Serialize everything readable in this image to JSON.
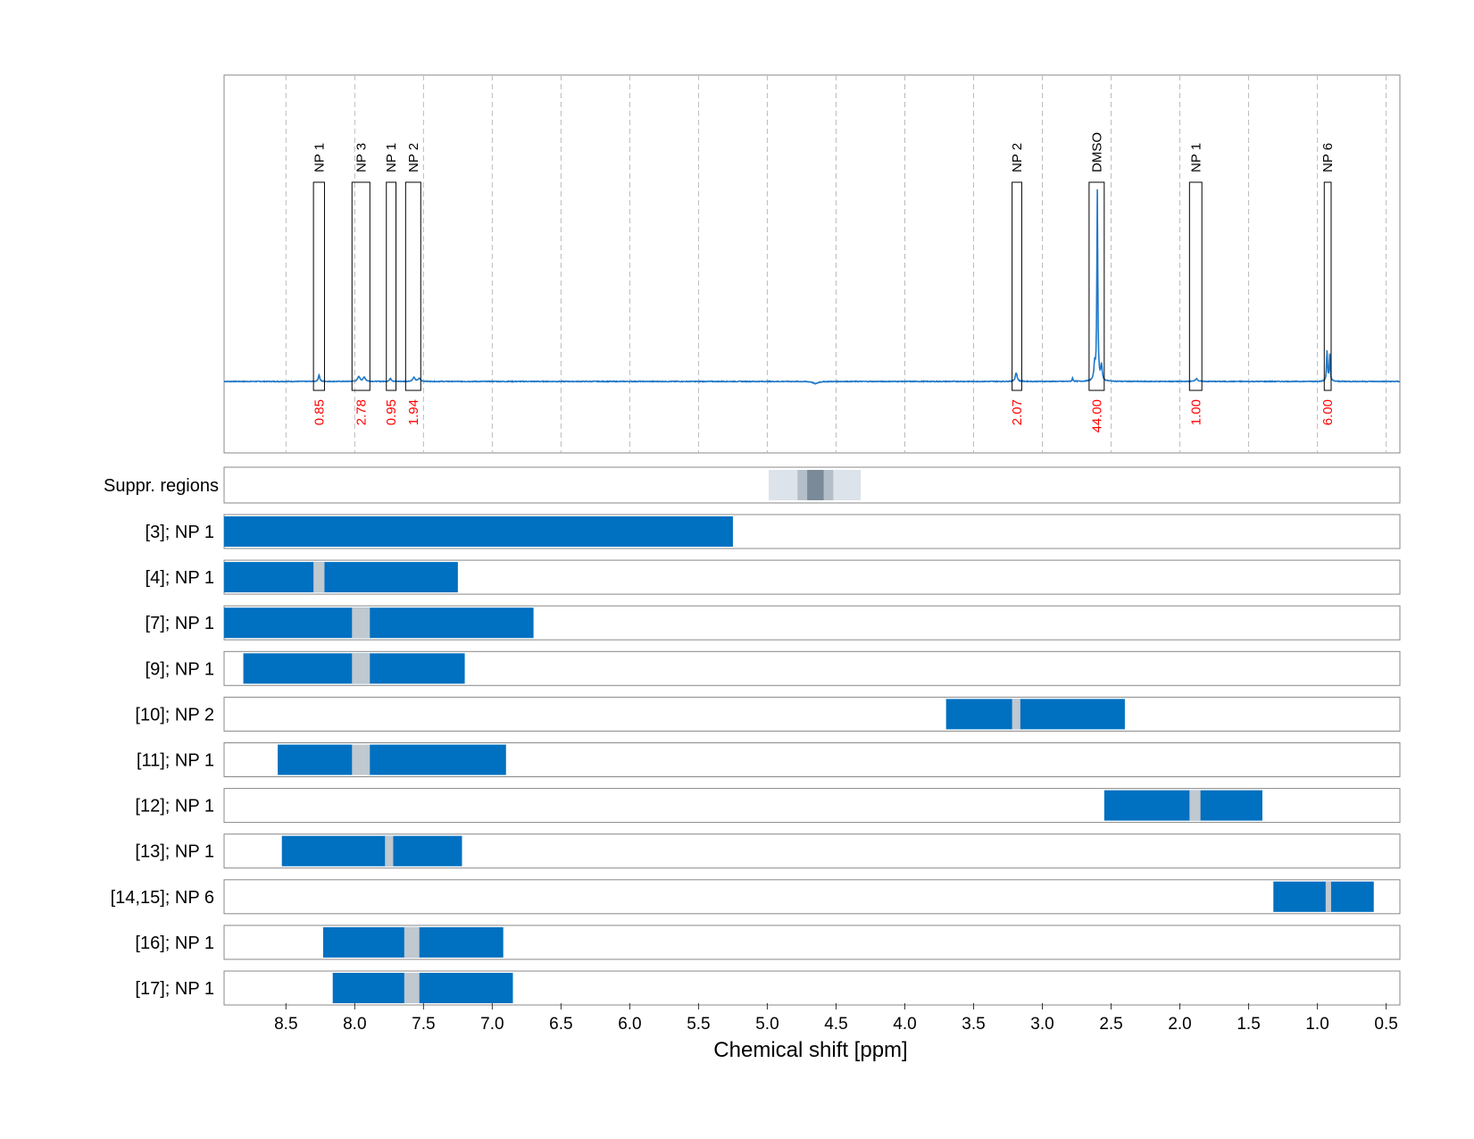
{
  "chart_data": {
    "type": "nmr-spectrum-with-fit-regions",
    "xlabel": "Chemical shift [ppm]",
    "x_reversed": true,
    "xlim": [
      8.95,
      0.4
    ],
    "x_ticks": [
      8.5,
      8.0,
      7.5,
      7.0,
      6.5,
      6.0,
      5.5,
      5.0,
      4.5,
      4.0,
      3.5,
      3.0,
      2.5,
      2.0,
      1.5,
      1.0,
      0.5
    ],
    "x_tick_labels": [
      "8.5",
      "8.0",
      "7.5",
      "7.0",
      "6.5",
      "6.0",
      "5.5",
      "5.0",
      "4.5",
      "4.0",
      "3.5",
      "3.0",
      "2.5",
      "2.0",
      "1.5",
      "1.0",
      "0.5"
    ],
    "grid": true,
    "spectrum": {
      "color": "#1f78c8",
      "baseline": 0,
      "ymax": 1.0,
      "peaks": [
        {
          "x": 8.26,
          "h": 0.035,
          "w": 0.006
        },
        {
          "x": 7.97,
          "h": 0.025,
          "w": 0.01
        },
        {
          "x": 7.93,
          "h": 0.022,
          "w": 0.01
        },
        {
          "x": 7.74,
          "h": 0.018,
          "w": 0.007
        },
        {
          "x": 7.57,
          "h": 0.02,
          "w": 0.01
        },
        {
          "x": 7.53,
          "h": 0.016,
          "w": 0.01
        },
        {
          "x": 3.19,
          "h": 0.045,
          "w": 0.008
        },
        {
          "x": 2.6,
          "h": 1.0,
          "w": 0.004
        },
        {
          "x": 2.57,
          "h": 0.08,
          "w": 0.006
        },
        {
          "x": 2.62,
          "h": 0.08,
          "w": 0.006
        },
        {
          "x": 2.78,
          "h": 0.018,
          "w": 0.004
        },
        {
          "x": 1.88,
          "h": 0.015,
          "w": 0.01
        },
        {
          "x": 0.93,
          "h": 0.16,
          "w": 0.004
        },
        {
          "x": 0.91,
          "h": 0.14,
          "w": 0.004
        }
      ],
      "dips": [
        {
          "x": 4.65,
          "h": -0.012,
          "w": 0.02
        }
      ]
    },
    "annotations": [
      {
        "label": "NP 1",
        "x_min": 8.3,
        "x_max": 8.22,
        "integral": "0.85"
      },
      {
        "label": "NP 3",
        "x_min": 8.02,
        "x_max": 7.89,
        "integral": "2.78"
      },
      {
        "label": "NP 1",
        "x_min": 7.77,
        "x_max": 7.7,
        "integral": "0.95"
      },
      {
        "label": "NP 2",
        "x_min": 7.63,
        "x_max": 7.52,
        "integral": "1.94"
      },
      {
        "label": "NP 2",
        "x_min": 3.22,
        "x_max": 3.15,
        "integral": "2.07"
      },
      {
        "label": "DMSO",
        "x_min": 2.66,
        "x_max": 2.55,
        "integral": "44.00"
      },
      {
        "label": "NP 1",
        "x_min": 1.93,
        "x_max": 1.84,
        "integral": "1.00"
      },
      {
        "label": "NP 6",
        "x_min": 0.95,
        "x_max": 0.9,
        "integral": "6.00"
      }
    ],
    "integral_color": "#ff0000",
    "suppression": {
      "label": "Suppr. regions",
      "bands": [
        {
          "x_min": 4.99,
          "x_max": 4.32,
          "color": "#dce3ea"
        },
        {
          "x_min": 4.78,
          "x_max": 4.52,
          "color": "#b4bec8"
        },
        {
          "x_min": 4.71,
          "x_max": 4.59,
          "color": "#7a8a99"
        }
      ]
    },
    "rows": [
      {
        "label": "[3]; NP 1",
        "x_min": 8.95,
        "x_max": 5.25
      },
      {
        "label": "[4]; NP 1",
        "x_min": 8.95,
        "x_max": 7.25,
        "gap": [
          8.3,
          8.22
        ]
      },
      {
        "label": "[7]; NP 1",
        "x_min": 8.95,
        "x_max": 6.7,
        "gap": [
          8.02,
          7.89
        ]
      },
      {
        "label": "[9]; NP 1",
        "x_min": 8.81,
        "x_max": 7.2,
        "gap": [
          8.02,
          7.89
        ]
      },
      {
        "label": "[10]; NP 2",
        "x_min": 3.7,
        "x_max": 2.4,
        "gap": [
          3.22,
          3.16
        ]
      },
      {
        "label": "[11]; NP 1",
        "x_min": 8.56,
        "x_max": 6.9,
        "gap": [
          8.02,
          7.89
        ]
      },
      {
        "label": "[12]; NP 1",
        "x_min": 2.55,
        "x_max": 1.4,
        "gap": [
          1.93,
          1.85
        ]
      },
      {
        "label": "[13]; NP 1",
        "x_min": 8.53,
        "x_max": 7.22,
        "gap": [
          7.78,
          7.72
        ]
      },
      {
        "label": "[14,15]; NP 6",
        "x_min": 1.32,
        "x_max": 0.59,
        "gap": [
          0.94,
          0.9
        ]
      },
      {
        "label": "[16]; NP 1",
        "x_min": 8.23,
        "x_max": 6.92,
        "gap": [
          7.64,
          7.53
        ]
      },
      {
        "label": "[17]; NP 1",
        "x_min": 8.16,
        "x_max": 6.85,
        "gap": [
          7.64,
          7.53
        ]
      }
    ],
    "bar_color": "#0070c0",
    "gap_color": "#c0c8d0"
  }
}
